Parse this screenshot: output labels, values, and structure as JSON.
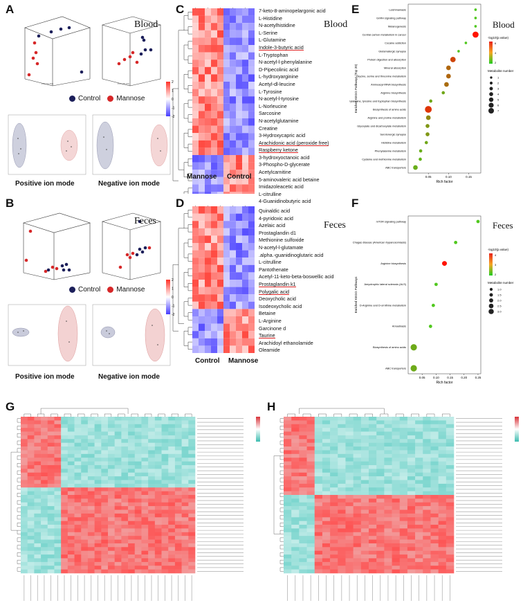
{
  "panels": {
    "A": "A",
    "B": "B",
    "C": "C",
    "D": "D",
    "E": "E",
    "F": "F",
    "G": "G",
    "H": "H"
  },
  "titles": {
    "blood_a": "Blood",
    "feces_b": "Feces",
    "blood_c": "Blood",
    "feces_d": "Feces",
    "blood_e": "Blood",
    "feces_f": "Feces"
  },
  "legend": {
    "control": "Control",
    "mannose": "Mannose"
  },
  "ion_modes": {
    "positive": "Positive ion mode",
    "negative": "Negative ion mode"
  },
  "heatmap_c": {
    "metabolites": [
      "7-keto-8-aminopelargonic acid",
      "L-Histidine",
      "N-acetylhistidine",
      "L-Serine",
      "L-Glutamine",
      "Indole-3-butyric acid",
      "L-Tryptophan",
      "N-acetyl-l-phenylalanine",
      "D-Pipecolinic acid",
      "L-hydroxyarginine",
      "Acetyl-dl-leucine",
      "L-Tyrosine",
      "N-acetyl-l-tyrosine",
      "L-Norleucine",
      "Sarcosine",
      "N-acetylglutamine",
      "Creatine",
      "3-Hydroxycapric acid",
      "Arachidonic acid (peroxide free)",
      "Raspberry ketone",
      "3-hydroxyoctanoic acid",
      "3-Phospho-D-glycerate",
      "Acetylcarnitine",
      "5-aminovaleric acid betaine",
      "Imidazoleacetic acid",
      "L-citrulline",
      "4-Guanidinobutyric acid"
    ],
    "groups": [
      "Mannose",
      "Control"
    ],
    "scale_ticks": [
      "2",
      "1",
      "0",
      "-1",
      "-2"
    ]
  },
  "heatmap_d": {
    "metabolites": [
      "Quinaldic acid",
      "4-pyridoxic acid",
      "Azelaic acid",
      "Prostaglandin d1",
      "Methionine sulfoxide",
      "N-acetyl-l-glutamate",
      ".alpha.-guanidinoglutaric acid",
      "L-citrulline",
      "Pantothenate",
      "Acetyl-11-keto-beta-boswellic acid",
      "Prostaglandin k1",
      "Polygalic acid",
      "Deoxycholic acid",
      "Isodeoxycholic acid",
      "Betaine",
      "L-Arginine",
      "Garcinone d",
      "Taurine",
      "Arachidoyl ethanolamide",
      "Oleamide"
    ],
    "groups": [
      "Control",
      "Mannose"
    ],
    "scale_ticks": [
      "2",
      "1",
      "0",
      "-1",
      "-2"
    ]
  },
  "chart_data": [
    {
      "type": "scatter",
      "title": "",
      "panel": "E",
      "tissue": "Blood",
      "xlabel": "Rich factor",
      "ylabel": "Enriched KEGG Pathways (Top 20)",
      "xlim": [
        0,
        0.18
      ],
      "xticks": [
        "0.05",
        "0.10",
        "0.15"
      ],
      "legend_color_title": "-log10(p.value)",
      "legend_color_ticks": [
        "6",
        "4",
        "2"
      ],
      "legend_size_title": "Metabolite number",
      "legend_size_ticks": [
        "1",
        "2",
        "3",
        "4",
        "5",
        "6",
        "7"
      ],
      "categories": [
        "Leishmaniasis",
        "GnRH signaling pathway",
        "Melanogenesis",
        "Central carbon metabolism in cancer",
        "Cocaine addiction",
        "Glutamatergic synapse",
        "Protein digestion and absorption",
        "Mineral absorption",
        "Glycine, serine and threonine metabolism",
        "Aminoacyl-tRNA biosynthesis",
        "Arginine biosynthesis",
        "Phenylalanine, tyrosine and tryptophan biosynthesis",
        "Biosynthesis of amino acids",
        "Arginine and proline metabolism",
        "Glyoxylate and dicarboxylate metabolism",
        "Serotonergic synapse",
        "Histidine metabolism",
        "Phenylalanine metabolism",
        "Cysteine and methionine metabolism",
        "ABC transporters"
      ],
      "x": [
        0.167,
        0.167,
        0.167,
        0.167,
        0.143,
        0.125,
        0.111,
        0.1,
        0.1,
        0.095,
        0.087,
        0.056,
        0.05,
        0.05,
        0.048,
        0.048,
        0.045,
        0.031,
        0.03,
        0.018
      ],
      "size": [
        1,
        1,
        1,
        6,
        1,
        1,
        5,
        4,
        4,
        4,
        2,
        2,
        7,
        4,
        3,
        3,
        2,
        2,
        2,
        4
      ],
      "neglog10p": [
        1.0,
        1.0,
        1.0,
        6.5,
        1.0,
        1.2,
        5.0,
        4.0,
        4.0,
        3.8,
        2.0,
        2.0,
        5.5,
        3.0,
        2.5,
        2.5,
        2.0,
        1.8,
        1.6,
        1.8
      ]
    },
    {
      "type": "scatter",
      "title": "",
      "panel": "F",
      "tissue": "Feces",
      "xlabel": "Rich factor",
      "ylabel": "Enriched KEGG Pathways",
      "xlim": [
        0,
        0.26
      ],
      "xticks": [
        "0.05",
        "0.10",
        "0.15",
        "0.20",
        "0.25"
      ],
      "legend_color_title": "-log10(p.value)",
      "legend_color_ticks": [
        "4",
        "3",
        "2"
      ],
      "legend_size_title": "Metabolite number",
      "legend_size_ticks": [
        "1.0",
        "1.5",
        "2.0",
        "2.5",
        "3.0"
      ],
      "categories": [
        "mTOR signaling pathway",
        "Chagas disease (American trypanosomiasis)",
        "Arginine biosynthesis",
        "Amyotrophic lateral sclerosis (ALS)",
        "D-Arginine and D-ornithine metabolism",
        "Amoebiasis",
        "Biosynthesis of amino acids",
        "ABC transporters"
      ],
      "x": [
        0.25,
        0.17,
        0.13,
        0.1,
        0.09,
        0.08,
        0.02,
        0.02
      ],
      "size": [
        1,
        1,
        2,
        1,
        1,
        1,
        3,
        3
      ],
      "neglog10p": [
        1.5,
        1.5,
        4.5,
        1.5,
        1.5,
        1.5,
        2.0,
        2.0
      ]
    }
  ]
}
